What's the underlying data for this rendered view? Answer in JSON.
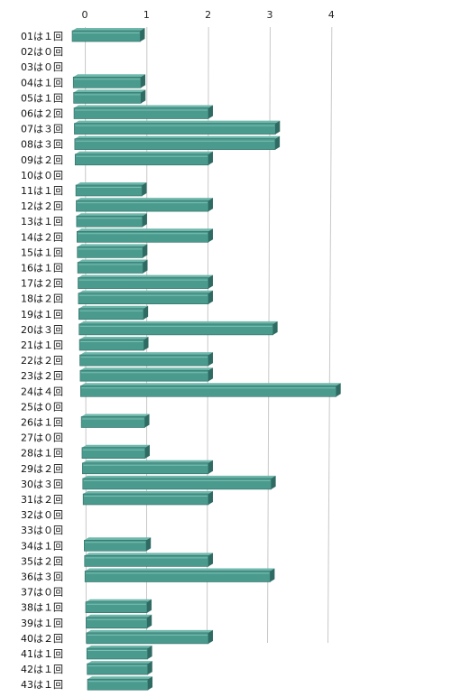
{
  "chart_data": {
    "type": "bar",
    "orientation": "horizontal",
    "style": "3d-perspective",
    "bar_color": "#4a9a8e",
    "bar_side_color": "#2f6b63",
    "bar_top_color": "#6fb8ac",
    "gridline_color": "#c8c8c8",
    "grid": true,
    "legend": "none",
    "title": "",
    "xlabel": "",
    "ylabel": "",
    "xlim": [
      0,
      4
    ],
    "ticks": [
      "0",
      "1",
      "2",
      "3",
      "4"
    ],
    "categories": [
      "01は１回",
      "02は０回",
      "03は０回",
      "04は１回",
      "05は１回",
      "06は２回",
      "07は３回",
      "08は３回",
      "09は２回",
      "10は０回",
      "11は１回",
      "12は２回",
      "13は１回",
      "14は２回",
      "15は１回",
      "16は１回",
      "17は２回",
      "18は２回",
      "19は１回",
      "20は３回",
      "21は１回",
      "22は２回",
      "23は２回",
      "24は４回",
      "25は０回",
      "26は１回",
      "27は０回",
      "28は１回",
      "29は２回",
      "30は３回",
      "31は２回",
      "32は０回",
      "33は０回",
      "34は１回",
      "35は２回",
      "36は３回",
      "37は０回",
      "38は１回",
      "39は１回",
      "40は２回",
      "41は１回",
      "42は１回",
      "43は１回"
    ],
    "values": [
      1,
      0,
      0,
      1,
      1,
      2,
      3,
      3,
      2,
      0,
      1,
      2,
      1,
      2,
      1,
      1,
      2,
      2,
      1,
      3,
      1,
      2,
      2,
      4,
      0,
      1,
      0,
      1,
      2,
      3,
      2,
      0,
      0,
      1,
      2,
      3,
      0,
      1,
      1,
      2,
      1,
      1,
      1
    ]
  }
}
